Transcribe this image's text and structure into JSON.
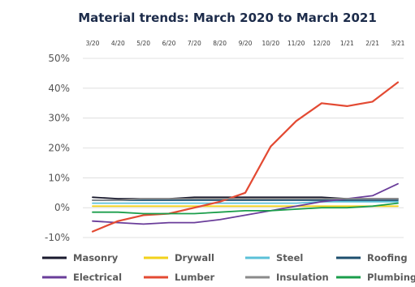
{
  "chart_data": {
    "type": "line",
    "title": "Material trends: March 2020 to March 2021",
    "xlabel": "",
    "ylabel": "",
    "categories": [
      "3/20",
      "4/20",
      "5/20",
      "6/20",
      "7/20",
      "8/20",
      "9/20",
      "10/20",
      "11/20",
      "12/20",
      "1/21",
      "2/21",
      "3/21"
    ],
    "y_ticks": [
      "50%",
      "40%",
      "30%",
      "20%",
      "10%",
      "0%",
      "-10%"
    ],
    "ylim": [
      -10,
      50
    ],
    "grid": "horizontal",
    "legend_position": "bottom",
    "series": [
      {
        "name": "Masonry",
        "color": "#1a1a2e",
        "values": [
          3.5,
          3.0,
          3.0,
          3.0,
          3.5,
          3.5,
          3.5,
          3.5,
          3.5,
          3.5,
          3.0,
          3.0,
          3.0
        ]
      },
      {
        "name": "Drywall",
        "color": "#f2d21b",
        "values": [
          0.5,
          0.5,
          0.5,
          0.5,
          0.5,
          0.5,
          0.5,
          0.5,
          0.5,
          0.5,
          0.5,
          0.5,
          0.5
        ]
      },
      {
        "name": "Steel",
        "color": "#5bc0d8",
        "values": [
          1.5,
          1.5,
          1.5,
          1.5,
          1.5,
          1.5,
          1.5,
          1.5,
          1.5,
          2.0,
          2.0,
          2.0,
          2.0
        ]
      },
      {
        "name": "Roofing",
        "color": "#1d4f6e",
        "values": [
          2.5,
          2.5,
          2.5,
          2.5,
          2.5,
          2.5,
          2.5,
          2.5,
          2.5,
          2.5,
          2.5,
          2.5,
          2.5
        ]
      },
      {
        "name": "Electrical",
        "color": "#6a3d9a",
        "values": [
          -4.5,
          -5.0,
          -5.5,
          -5.0,
          -5.0,
          -4.0,
          -2.5,
          -1.0,
          0.5,
          2.0,
          3.0,
          4.0,
          8.0
        ]
      },
      {
        "name": "Lumber",
        "color": "#e34a33",
        "values": [
          -8.0,
          -4.5,
          -2.5,
          -2.0,
          0.0,
          2.0,
          5.0,
          20.5,
          29.0,
          35.0,
          34.0,
          35.5,
          42.0
        ]
      },
      {
        "name": "Insulation",
        "color": "#8a8a8a",
        "values": [
          2.5,
          2.5,
          3.0,
          3.0,
          3.0,
          3.0,
          3.0,
          3.0,
          3.0,
          3.0,
          3.0,
          3.0,
          3.0
        ]
      },
      {
        "name": "Plumbing",
        "color": "#1b9e4b",
        "values": [
          -1.5,
          -1.5,
          -2.0,
          -2.0,
          -2.0,
          -1.5,
          -1.0,
          -1.0,
          -0.5,
          0.0,
          0.0,
          0.5,
          1.5
        ]
      }
    ]
  }
}
